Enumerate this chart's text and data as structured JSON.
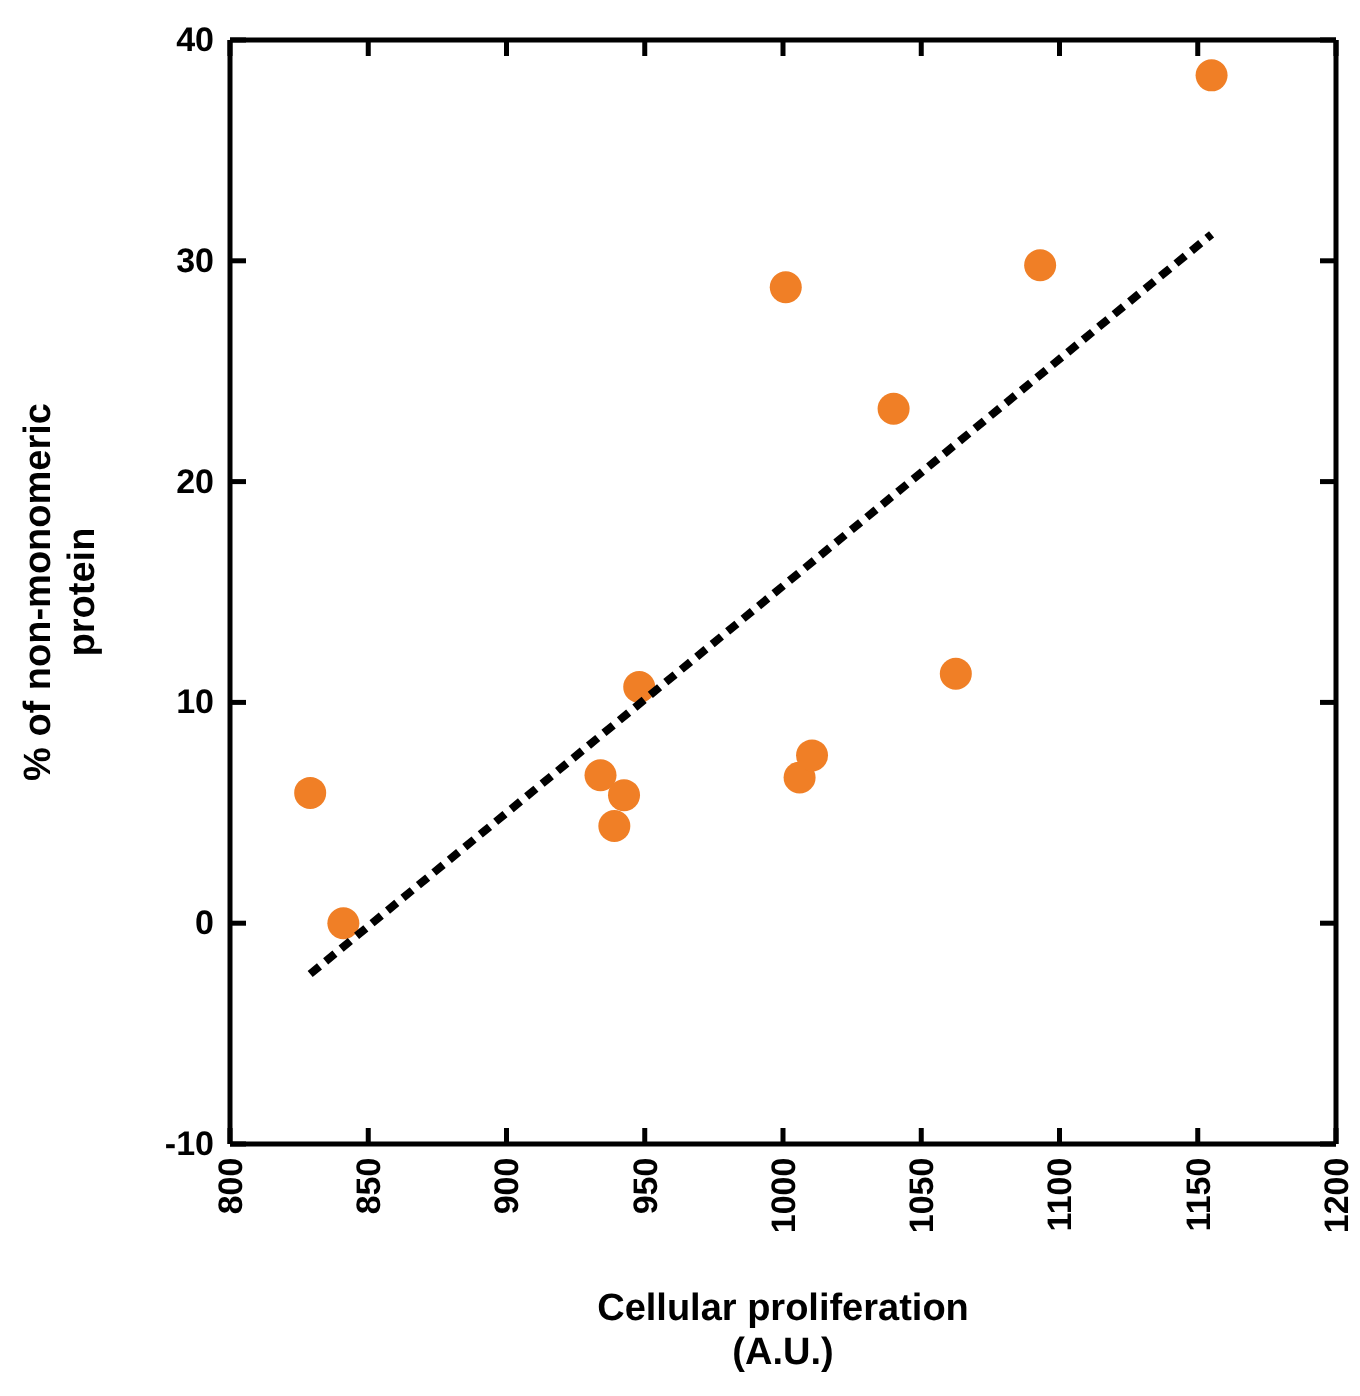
{
  "chart_data": {
    "type": "scatter",
    "xlabel": "Cellular proliferation\n(A.U.)",
    "ylabel": "% of non-monomeric\nprotein",
    "xlim": [
      800,
      1200
    ],
    "xticks": [
      800,
      850,
      900,
      950,
      1000,
      1050,
      1100,
      1150,
      1200
    ],
    "ylim": [
      -10,
      40
    ],
    "yticks": [
      -10,
      0,
      10,
      20,
      30,
      40
    ],
    "grid": false,
    "marker": "circle",
    "series": [
      {
        "color": "#f07f26",
        "x": [
          829,
          841,
          934,
          942.5,
          939,
          948,
          1001,
          1006,
          1010.5,
          1040,
          1062.5,
          1093,
          1155
        ],
        "values": [
          5.9,
          0,
          6.7,
          5.8,
          4.4,
          10.7,
          28.8,
          6.6,
          7.6,
          23.3,
          11.3,
          29.8,
          38.4
        ]
      },
      {
        "type": "line",
        "color": "#000000",
        "line_style": "dashed",
        "marker": "none",
        "x": [
          829,
          1155
        ],
        "values": [
          -2.3,
          31.2
        ]
      }
    ]
  }
}
